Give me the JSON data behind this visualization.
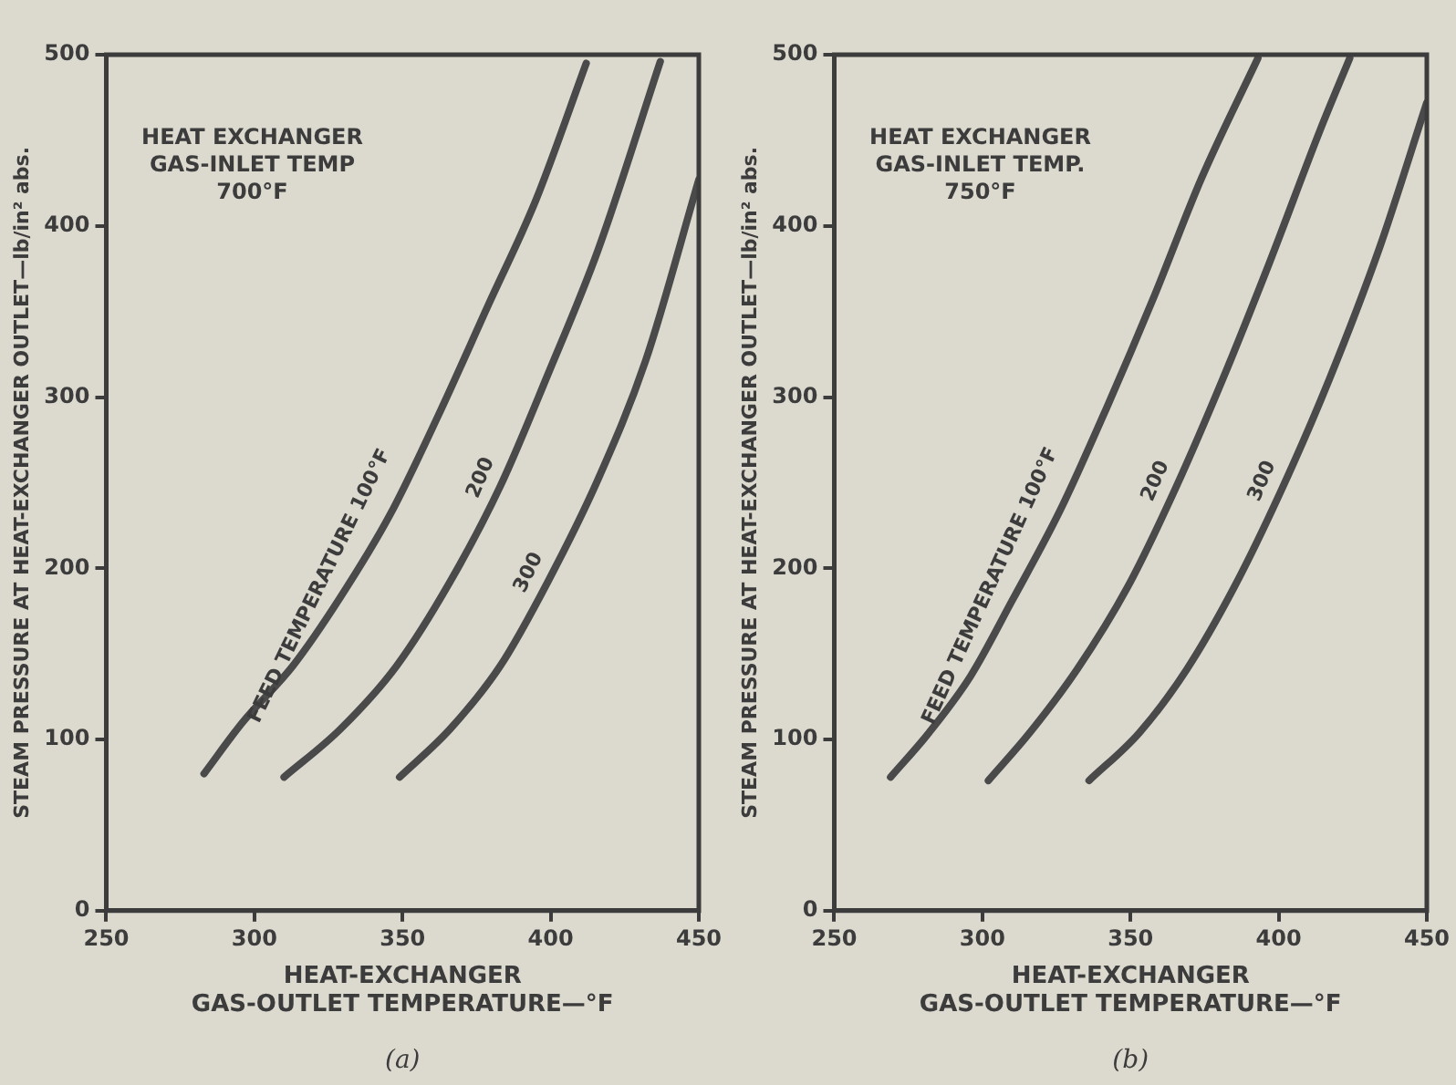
{
  "chart_data": [
    {
      "type": "line",
      "xlabel": "HEAT-EXCHANGER GAS-OUTLET TEMPERATURE—°F",
      "ylabel": "STEAM PRESSURE AT HEAT-EXCHANGER OUTLET—lb/in² abs.",
      "xlim": [
        250,
        450
      ],
      "ylim": [
        0,
        500
      ],
      "xticks": [
        250,
        300,
        350,
        400,
        450
      ],
      "yticks": [
        0,
        100,
        200,
        300,
        400,
        500
      ],
      "grid": false,
      "legend": false,
      "marker": "none",
      "line_style": "solid",
      "annotations": [
        "HEAT EXCHANGER GAS-INLET TEMP 700°F",
        "(a)"
      ],
      "series": [
        {
          "name": "FEED TEMPERATURE 100°F",
          "color": "#4a4a4a",
          "x": [
            283,
            296,
            313,
            329,
            346,
            362,
            379,
            395,
            412
          ],
          "values": [
            80,
            110,
            143,
            183,
            232,
            289,
            354,
            415,
            495
          ]
        },
        {
          "name": "200",
          "color": "#4a4a4a",
          "x": [
            310,
            329,
            348,
            366,
            383,
            399,
            416,
            437
          ],
          "values": [
            78,
            106,
            143,
            192,
            248,
            313,
            386,
            496
          ]
        },
        {
          "name": "300",
          "color": "#4a4a4a",
          "x": [
            349,
            366,
            383,
            399,
            416,
            432,
            450
          ],
          "values": [
            78,
            106,
            143,
            192,
            252,
            321,
            427
          ]
        }
      ]
    },
    {
      "type": "line",
      "xlabel": "HEAT-EXCHANGER GAS-OUTLET TEMPERATURE—°F",
      "ylabel": "STEAM PRESSURE AT HEAT-EXCHANGER OUTLET—lb/in² abs.",
      "xlim": [
        250,
        450
      ],
      "ylim": [
        0,
        500
      ],
      "xticks": [
        250,
        300,
        350,
        400,
        450
      ],
      "yticks": [
        0,
        100,
        200,
        300,
        400,
        500
      ],
      "grid": false,
      "legend": false,
      "marker": "none",
      "line_style": "solid",
      "annotations": [
        "HEAT EXCHANGER GAS-INLET TEMP. 750°F",
        "(b)"
      ],
      "series": [
        {
          "name": "FEED TEMPERATURE 100°F",
          "color": "#4a4a4a",
          "x": [
            269,
            282,
            296,
            310,
            326,
            342,
            358,
            374,
            393
          ],
          "values": [
            78,
            104,
            137,
            181,
            233,
            294,
            359,
            428,
            498
          ]
        },
        {
          "name": "200",
          "color": "#4a4a4a",
          "x": [
            302,
            316,
            332,
            349,
            365,
            381,
            397,
            414,
            424
          ],
          "values": [
            76,
            104,
            141,
            189,
            246,
            310,
            379,
            456,
            498
          ]
        },
        {
          "name": "300",
          "color": "#4a4a4a",
          "x": [
            336,
            353,
            369,
            385,
            401,
            417,
            434,
            450
          ],
          "values": [
            76,
            104,
            141,
            189,
            246,
            310,
            387,
            472
          ]
        }
      ]
    }
  ]
}
